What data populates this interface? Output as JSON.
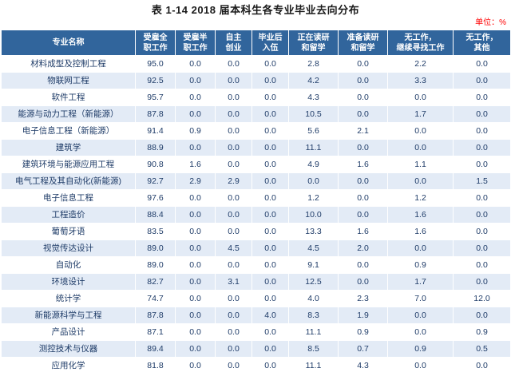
{
  "title": "表 1-14  2018 届本科生各专业毕业去向分布",
  "unit_label": "单位：%",
  "colors": {
    "header_bg": "#31659C",
    "header_text": "#FFFFFF",
    "row_stripe": "#E3EBF6",
    "data_text": "#1F3C68",
    "unit_text": "#FF0000",
    "title_text": "#1A1A1A"
  },
  "table": {
    "major_header": "专业名称",
    "columns": [
      "受雇全\n职工作",
      "受雇半\n职工作",
      "自主\n创业",
      "毕业后\n入伍",
      "正在读研\n和留学",
      "准备读研\n和留学",
      "无工作，\n继续寻找工作",
      "无工作，\n其他"
    ],
    "rows": [
      {
        "major": "材料成型及控制工程",
        "values": [
          "95.0",
          "0.0",
          "0.0",
          "0.0",
          "2.8",
          "0.0",
          "2.2",
          "0.0"
        ]
      },
      {
        "major": "物联网工程",
        "values": [
          "92.5",
          "0.0",
          "0.0",
          "0.0",
          "4.2",
          "0.0",
          "3.3",
          "0.0"
        ]
      },
      {
        "major": "软件工程",
        "values": [
          "95.7",
          "0.0",
          "0.0",
          "0.0",
          "4.3",
          "0.0",
          "0.0",
          "0.0"
        ]
      },
      {
        "major": "能源与动力工程（新能源）",
        "values": [
          "87.8",
          "0.0",
          "0.0",
          "0.0",
          "10.5",
          "0.0",
          "1.7",
          "0.0"
        ]
      },
      {
        "major": "电子信息工程（新能源）",
        "values": [
          "91.4",
          "0.9",
          "0.0",
          "0.0",
          "5.6",
          "2.1",
          "0.0",
          "0.0"
        ]
      },
      {
        "major": "建筑学",
        "values": [
          "88.9",
          "0.0",
          "0.0",
          "0.0",
          "11.1",
          "0.0",
          "0.0",
          "0.0"
        ]
      },
      {
        "major": "建筑环境与能源应用工程",
        "values": [
          "90.8",
          "1.6",
          "0.0",
          "0.0",
          "4.9",
          "1.6",
          "1.1",
          "0.0"
        ]
      },
      {
        "major": "电气工程及其自动化(新能源)",
        "values": [
          "92.7",
          "2.9",
          "2.9",
          "0.0",
          "0.0",
          "0.0",
          "0.0",
          "1.5"
        ]
      },
      {
        "major": "电子信息工程",
        "values": [
          "97.6",
          "0.0",
          "0.0",
          "0.0",
          "1.2",
          "0.0",
          "1.2",
          "0.0"
        ]
      },
      {
        "major": "工程造价",
        "values": [
          "88.4",
          "0.0",
          "0.0",
          "0.0",
          "10.0",
          "0.0",
          "1.6",
          "0.0"
        ]
      },
      {
        "major": "葡萄牙语",
        "values": [
          "83.5",
          "0.0",
          "0.0",
          "0.0",
          "13.3",
          "1.6",
          "1.6",
          "0.0"
        ]
      },
      {
        "major": "视觉传达设计",
        "values": [
          "89.0",
          "0.0",
          "4.5",
          "0.0",
          "4.5",
          "2.0",
          "0.0",
          "0.0"
        ]
      },
      {
        "major": "自动化",
        "values": [
          "89.0",
          "0.0",
          "0.0",
          "0.0",
          "9.1",
          "0.0",
          "0.9",
          "0.0"
        ]
      },
      {
        "major": "环境设计",
        "values": [
          "82.7",
          "0.0",
          "3.1",
          "0.0",
          "12.5",
          "0.0",
          "1.7",
          "0.0"
        ]
      },
      {
        "major": "统计学",
        "values": [
          "74.7",
          "0.0",
          "0.0",
          "0.0",
          "4.0",
          "2.3",
          "7.0",
          "12.0"
        ]
      },
      {
        "major": "新能源科学与工程",
        "values": [
          "87.8",
          "0.0",
          "0.0",
          "4.0",
          "8.3",
          "1.9",
          "0.0",
          "0.0"
        ]
      },
      {
        "major": "产品设计",
        "values": [
          "87.1",
          "0.0",
          "0.0",
          "0.0",
          "11.1",
          "0.9",
          "0.0",
          "0.9"
        ]
      },
      {
        "major": "测控技术与仪器",
        "values": [
          "89.4",
          "0.0",
          "0.0",
          "0.0",
          "8.5",
          "0.7",
          "0.9",
          "0.5"
        ]
      },
      {
        "major": "应用化学",
        "values": [
          "81.8",
          "0.0",
          "0.0",
          "0.0",
          "11.1",
          "4.3",
          "0.0",
          "0.0"
        ]
      }
    ]
  }
}
